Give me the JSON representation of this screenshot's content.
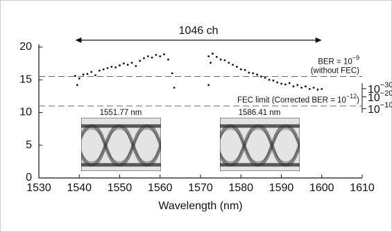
{
  "chart_data": {
    "type": "scatter",
    "x_label": "Wavelength (nm)",
    "xlim": [
      1530,
      1610
    ],
    "xticks": [
      1530,
      1540,
      1550,
      1560,
      1570,
      1580,
      1590,
      1600,
      1610
    ],
    "ylim": [
      0,
      20
    ],
    "yticks": [
      0,
      5,
      10,
      15,
      20
    ],
    "y2ticks": [
      {
        "value": 13.65,
        "label": "10",
        "exponent": "−30"
      },
      {
        "value": 12.4,
        "label": "10",
        "exponent": "−20"
      },
      {
        "value": 10.6,
        "label": "10",
        "exponent": "−10"
      }
    ],
    "series": [
      {
        "color": "#111111",
        "x": [
          1539,
          1539.5,
          1540,
          1541,
          1542,
          1543,
          1544,
          1545,
          1546,
          1547,
          1548,
          1549,
          1550,
          1551,
          1552,
          1553,
          1554,
          1555,
          1556,
          1557,
          1558,
          1559,
          1560,
          1561,
          1562,
          1563,
          1563.5,
          1572,
          1572,
          1572.5,
          1573,
          1574,
          1575,
          1576,
          1577,
          1578,
          1579,
          1580,
          1581,
          1582,
          1583,
          1584,
          1585,
          1586,
          1587,
          1588,
          1589,
          1590,
          1591,
          1592,
          1593,
          1594,
          1595,
          1596,
          1597,
          1598,
          1599,
          1600
        ],
        "values": [
          15.6,
          14.2,
          15.2,
          15.8,
          15.9,
          16.2,
          15.7,
          16.4,
          16.6,
          16.8,
          17.0,
          16.9,
          17.2,
          17.5,
          17.3,
          17.6,
          17.1,
          17.9,
          18.3,
          18.6,
          18.4,
          18.8,
          18.6,
          18.9,
          18.1,
          16.0,
          13.8,
          18.6,
          14.2,
          17.6,
          19.0,
          18.5,
          18.1,
          18.0,
          17.6,
          17.3,
          17.0,
          16.6,
          16.5,
          16.1,
          16.0,
          15.8,
          15.5,
          15.3,
          15.0,
          14.9,
          14.6,
          14.4,
          14.3,
          14.5,
          14.0,
          14.2,
          13.8,
          14.0,
          13.6,
          13.8,
          13.5,
          13.6
        ]
      }
    ],
    "span_annotation": {
      "text": "1046 ch",
      "x": [
        1539,
        1600
      ]
    },
    "reference_lines": [
      {
        "value": 15.5,
        "lines": [
          {
            "text": "BER = 10",
            "exponent": "−9"
          },
          {
            "text": "(without FEC)"
          }
        ]
      },
      {
        "value": 11,
        "lines": [
          {
            "text": "FEC limit (Corrected BER = 10",
            "exponent": "−12",
            "suffix": ")"
          }
        ]
      }
    ],
    "insets": [
      {
        "label": "1551.77 nm"
      },
      {
        "label": "1586.41 nm"
      }
    ]
  }
}
